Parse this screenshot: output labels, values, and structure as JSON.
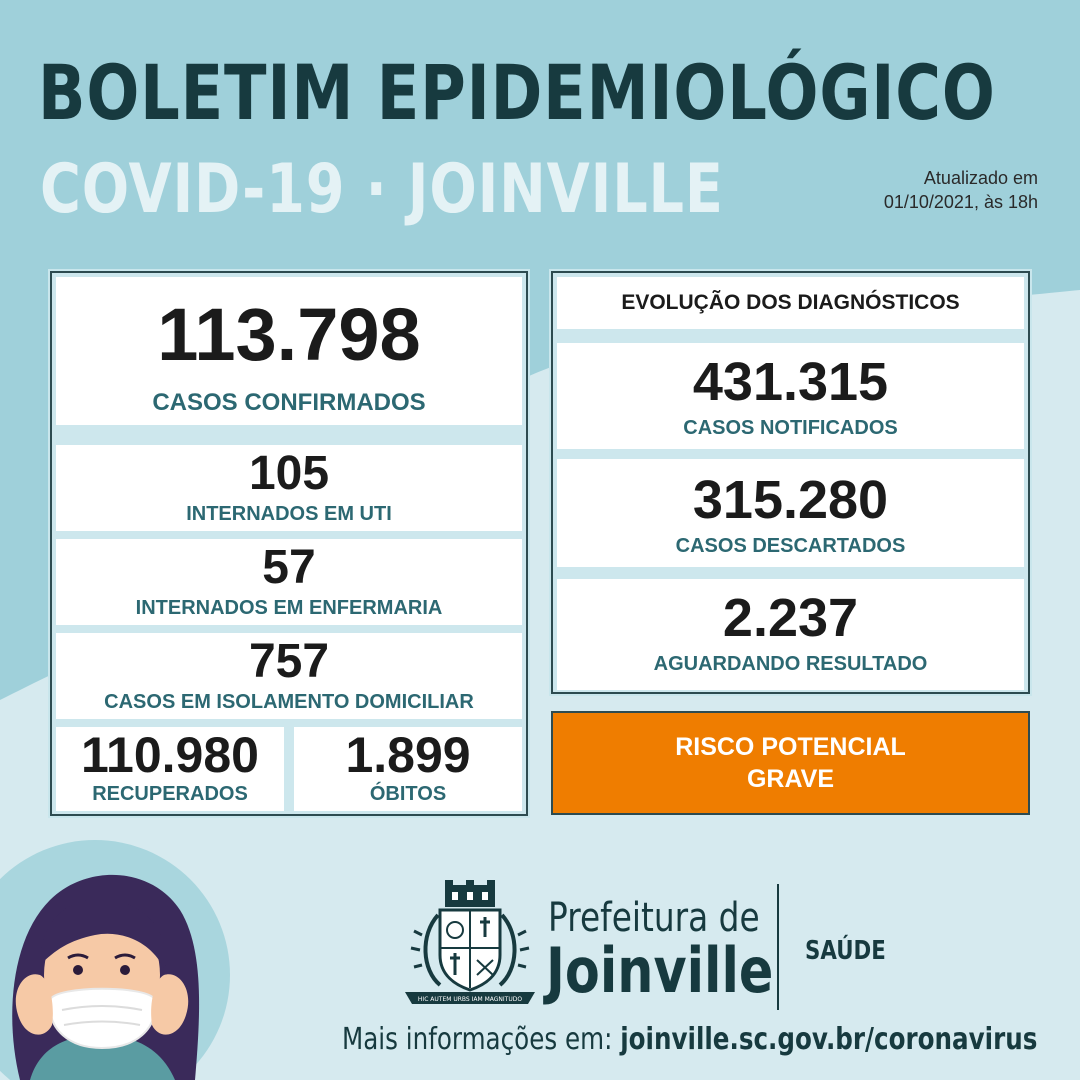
{
  "header": {
    "title": "BOLETIM EPIDEMIOLÓGICO",
    "subtitle": "COVID-19 · JOINVILLE",
    "updated_line1": "Atualizado em",
    "updated_line2": "01/10/2021, às 18h"
  },
  "left": {
    "confirmed": {
      "value": "113.798",
      "label": "CASOS CONFIRMADOS"
    },
    "uti": {
      "value": "105",
      "label": "INTERNADOS EM UTI"
    },
    "ward": {
      "value": "57",
      "label": "INTERNADOS EM ENFERMARIA"
    },
    "isolation": {
      "value": "757",
      "label": "CASOS EM ISOLAMENTO DOMICILIAR"
    },
    "recovered": {
      "value": "110.980",
      "label": "RECUPERADOS"
    },
    "deaths": {
      "value": "1.899",
      "label": "ÓBITOS"
    }
  },
  "right": {
    "heading": "EVOLUÇÃO DOS DIAGNÓSTICOS",
    "notified": {
      "value": "431.315",
      "label": "CASOS NOTIFICADOS"
    },
    "discarded": {
      "value": "315.280",
      "label": "CASOS DESCARTADOS"
    },
    "pending": {
      "value": "2.237",
      "label": "AGUARDANDO RESULTADO"
    }
  },
  "risk": {
    "line1": "RISCO POTENCIAL",
    "line2": "GRAVE",
    "color": "#ef7d00"
  },
  "footer": {
    "logo_line1": "Prefeitura de",
    "logo_line2": "Joinville",
    "department": "SAÚDE",
    "seal_motto": "HIC AUTEM URBS IAM MAGNITUDO",
    "more_info_prefix": "Mais informações em:",
    "more_info_url": "joinville.sc.gov.br/coronavirus"
  },
  "colors": {
    "background": "#d6eaef",
    "header_band": "#9fd0da",
    "title": "#173a3f",
    "label": "#2c6872",
    "accent": "#ef7d00"
  }
}
